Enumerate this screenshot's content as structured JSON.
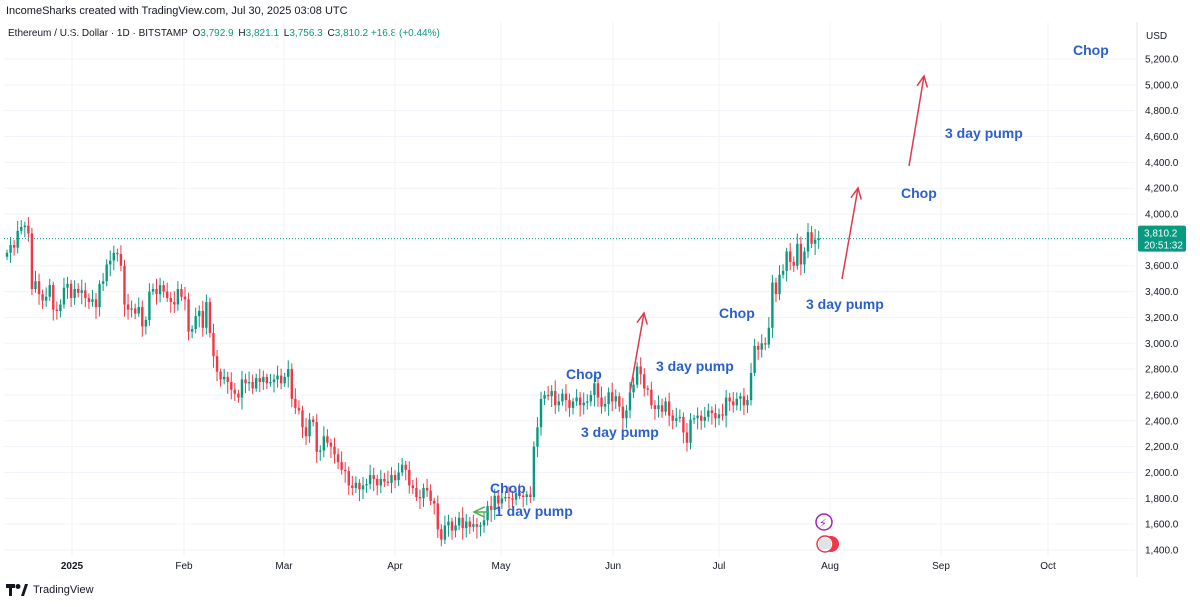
{
  "header": {
    "credit": "IncomeSharks created with TradingView.com, Jul 30, 2025 03:08 UTC"
  },
  "legend": {
    "symbol": "Ethereum / U.S. Dollar · 1D · BITSTAMP",
    "o_label": "O",
    "o": "3,792.9",
    "h_label": "H",
    "h": "3,821.1",
    "l_label": "L",
    "l": "3,756.3",
    "c_label": "C",
    "c": "3,810.2",
    "change": "+16.8 (+0.44%)"
  },
  "footer": {
    "brand": "TradingView"
  },
  "colors": {
    "up": "#089981",
    "down": "#f23645",
    "annotation": "#2a5fce",
    "arrow": "#e03a4e",
    "price_tag": "#089981"
  },
  "chart_data": {
    "type": "candlestick",
    "currency": "USD",
    "ylim": [
      1300,
      5350
    ],
    "y_ticks": [
      "1,400.0",
      "1,600.0",
      "1,800.0",
      "2,000.0",
      "2,200.0",
      "2,400.0",
      "2,600.0",
      "2,800.0",
      "3,000.0",
      "3,200.0",
      "3,400.0",
      "3,600.0",
      "3,800.0",
      "4,000.0",
      "4,200.0",
      "4,400.0",
      "4,600.0",
      "4,800.0",
      "5,000.0",
      "5,200.0"
    ],
    "x_ticks": [
      "2025",
      "Feb",
      "Mar",
      "Apr",
      "May",
      "Jun",
      "Jul",
      "Aug",
      "Sep",
      "Oct"
    ],
    "last_price": "3,810.2",
    "countdown": "20:51:32",
    "close_series": [
      3700,
      3760,
      3740,
      3870,
      3900,
      3910,
      3850,
      3420,
      3480,
      3380,
      3330,
      3360,
      3450,
      3260,
      3250,
      3300,
      3430,
      3460,
      3350,
      3420,
      3390,
      3410,
      3350,
      3320,
      3340,
      3280,
      3460,
      3480,
      3610,
      3640,
      3700,
      3690,
      3600,
      3300,
      3260,
      3270,
      3230,
      3280,
      3130,
      3180,
      3400,
      3420,
      3380,
      3450,
      3400,
      3350,
      3320,
      3300,
      3420,
      3360,
      3340,
      3090,
      3110,
      3210,
      3250,
      3120,
      3320,
      3080,
      2900,
      2780,
      2720,
      2740,
      2700,
      2640,
      2610,
      2580,
      2720,
      2690,
      2700,
      2650,
      2730,
      2700,
      2740,
      2690,
      2700,
      2720,
      2750,
      2690,
      2740,
      2800,
      2570,
      2500,
      2480,
      2350,
      2280,
      2410,
      2390,
      2160,
      2170,
      2280,
      2230,
      2200,
      2140,
      2080,
      2020,
      2010,
      1900,
      1880,
      1920,
      1870,
      1900,
      1910,
      1980,
      1950,
      1900,
      1950,
      1930,
      1920,
      1980,
      1940,
      2000,
      2060,
      2020,
      1900,
      1880,
      1810,
      1800,
      1880,
      1860,
      1780,
      1760,
      1560,
      1480,
      1590,
      1620,
      1550,
      1590,
      1650,
      1570,
      1620,
      1580,
      1600,
      1580,
      1590,
      1630,
      1740,
      1710,
      1820,
      1760,
      1800,
      1810,
      1800,
      1790,
      1840,
      1820,
      1810,
      1830,
      1810,
      2200,
      2350,
      2570,
      2600,
      2590,
      2630,
      2520,
      2550,
      2610,
      2560,
      2500,
      2550,
      2580,
      2520,
      2540,
      2550,
      2600,
      2690,
      2580,
      2510,
      2530,
      2620,
      2550,
      2590,
      2510,
      2420,
      2480,
      2620,
      2680,
      2820,
      2760,
      2650,
      2640,
      2520,
      2490,
      2520,
      2470,
      2550,
      2440,
      2400,
      2420,
      2430,
      2310,
      2230,
      2410,
      2420,
      2440,
      2400,
      2430,
      2480,
      2460,
      2420,
      2450,
      2440,
      2580,
      2550,
      2520,
      2570,
      2590,
      2520,
      2560,
      2770,
      2980,
      2950,
      3000,
      2990,
      3120,
      3470,
      3380,
      3530,
      3560,
      3710,
      3630,
      3600,
      3770,
      3610,
      3710,
      3860,
      3770,
      3800,
      3810
    ]
  },
  "annotations": [
    {
      "label": "Chop"
    },
    {
      "label": "1 day pump"
    },
    {
      "label": "Chop"
    },
    {
      "label": "3 day pump"
    },
    {
      "label": "3 day pump"
    },
    {
      "label": "Chop"
    },
    {
      "label": "3 day pump"
    },
    {
      "label": "Chop"
    },
    {
      "label": "3 day pump"
    },
    {
      "label": "Chop"
    }
  ]
}
